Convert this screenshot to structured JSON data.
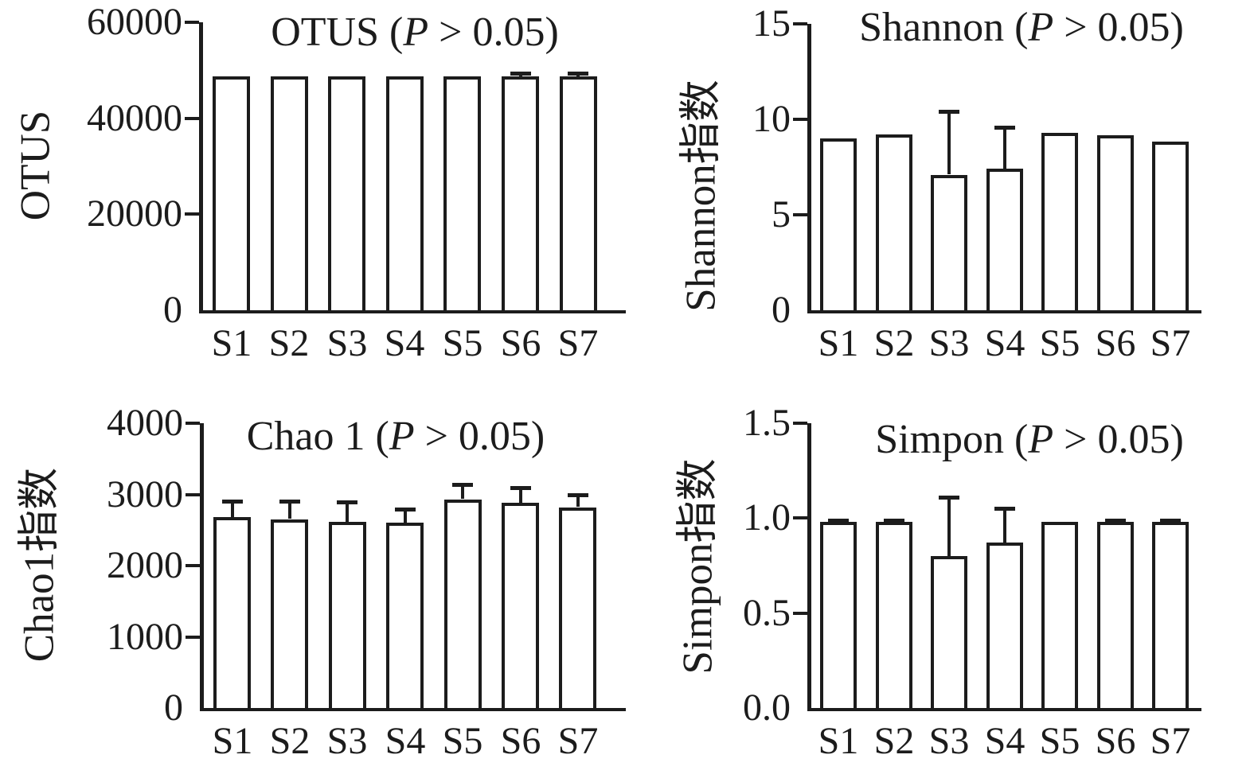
{
  "figure": {
    "description": "2x2 grid of alpha-diversity bar charts with upward error bars",
    "background_color": "#ffffff",
    "ink_color": "#1c1c1c"
  },
  "chart_data": [
    {
      "id": "otus",
      "type": "bar",
      "panel": "top-left",
      "title": "OTUS (P > 0.05)",
      "title_main": "OTUS",
      "p_label": "P > 0.05",
      "ylabel": "OTUS",
      "xlabel": "",
      "categories": [
        "S1",
        "S2",
        "S3",
        "S4",
        "S5",
        "S6",
        "S7"
      ],
      "values": [
        48800,
        48800,
        48800,
        48800,
        48800,
        48800,
        48800
      ],
      "errors_plus": [
        0,
        0,
        0,
        0,
        0,
        600,
        600
      ],
      "ylim": [
        0,
        60000
      ],
      "yticks": [
        {
          "value": 0,
          "label": "0"
        },
        {
          "value": 20000,
          "label": "20000"
        },
        {
          "value": 40000,
          "label": "40000"
        },
        {
          "value": 60000,
          "label": "60000"
        }
      ],
      "grid": false,
      "legend": "none",
      "bar_fill": "#ffffff",
      "bar_outline": "#1c1c1c"
    },
    {
      "id": "shannon",
      "type": "bar",
      "panel": "top-right",
      "title": "Shannon (P > 0.05)",
      "title_main": "Shannon",
      "p_label": "P > 0.05",
      "ylabel": "Shannon指数",
      "xlabel": "",
      "categories": [
        "S1",
        "S2",
        "S3",
        "S4",
        "S5",
        "S6",
        "S7"
      ],
      "values": [
        9.0,
        9.2,
        7.1,
        7.4,
        9.3,
        9.15,
        8.85
      ],
      "errors_plus": [
        0,
        0,
        3.3,
        2.2,
        0,
        0,
        0
      ],
      "ylim": [
        0,
        15
      ],
      "yticks": [
        {
          "value": 0,
          "label": "0"
        },
        {
          "value": 5,
          "label": "5"
        },
        {
          "value": 10,
          "label": "10"
        },
        {
          "value": 15,
          "label": "15"
        }
      ],
      "grid": false,
      "legend": "none",
      "bar_fill": "#ffffff",
      "bar_outline": "#1c1c1c"
    },
    {
      "id": "chao1",
      "type": "bar",
      "panel": "bottom-left",
      "title": "Chao 1 (P > 0.05)",
      "title_main": "Chao 1",
      "p_label": "P > 0.05",
      "ylabel": "Chao1指数",
      "xlabel": "",
      "categories": [
        "S1",
        "S2",
        "S3",
        "S4",
        "S5",
        "S6",
        "S7"
      ],
      "values": [
        2680,
        2650,
        2610,
        2600,
        2930,
        2880,
        2820
      ],
      "errors_plus": [
        220,
        250,
        280,
        190,
        205,
        210,
        170
      ],
      "ylim": [
        0,
        4000
      ],
      "yticks": [
        {
          "value": 0,
          "label": "0"
        },
        {
          "value": 1000,
          "label": "1000"
        },
        {
          "value": 2000,
          "label": "2000"
        },
        {
          "value": 3000,
          "label": "3000"
        },
        {
          "value": 4000,
          "label": "4000"
        }
      ],
      "grid": false,
      "legend": "none",
      "bar_fill": "#ffffff",
      "bar_outline": "#1c1c1c"
    },
    {
      "id": "simpon",
      "type": "bar",
      "panel": "bottom-right",
      "title": "Simpon (P > 0.05)",
      "title_main": "Simpon",
      "p_label": "P > 0.05",
      "ylabel": "Simpon指数",
      "xlabel": "",
      "categories": [
        "S1",
        "S2",
        "S3",
        "S4",
        "S5",
        "S6",
        "S7"
      ],
      "values": [
        0.98,
        0.98,
        0.8,
        0.87,
        0.98,
        0.98,
        0.98
      ],
      "errors_plus": [
        0.01,
        0.01,
        0.31,
        0.18,
        0,
        0.01,
        0.01
      ],
      "ylim": [
        0,
        1.5
      ],
      "yticks": [
        {
          "value": 0,
          "label": "0.0"
        },
        {
          "value": 0.5,
          "label": "0.5"
        },
        {
          "value": 1.0,
          "label": "1.0"
        },
        {
          "value": 1.5,
          "label": "1.5"
        }
      ],
      "grid": false,
      "legend": "none",
      "bar_fill": "#ffffff",
      "bar_outline": "#1c1c1c"
    }
  ]
}
